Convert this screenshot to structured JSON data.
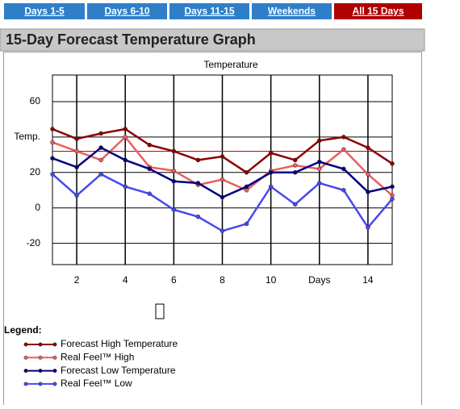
{
  "tabs": [
    {
      "label": "Days 1-5",
      "active": false
    },
    {
      "label": "Days 6-10",
      "active": false
    },
    {
      "label": "Days 11-15",
      "active": false
    },
    {
      "label": "Weekends",
      "active": false
    },
    {
      "label": "All 15 Days",
      "active": true
    }
  ],
  "header": {
    "title": "15-Day Forecast Temperature Graph"
  },
  "chart_data": {
    "type": "line",
    "title": "Temperature",
    "x": [
      1,
      2,
      3,
      4,
      5,
      6,
      7,
      8,
      9,
      10,
      11,
      12,
      13,
      14,
      15
    ],
    "xlim": [
      1,
      15
    ],
    "xticks": [
      2,
      4,
      6,
      8,
      10,
      {
        "value": 12,
        "label": "Days"
      },
      14
    ],
    "ylim": [
      -32,
      75
    ],
    "yticks": [
      60,
      {
        "value": 40,
        "label": "Temp."
      },
      20,
      0,
      -20
    ],
    "grid": true,
    "reference_line": {
      "value": 32,
      "color": "#cc0000"
    },
    "legend_title": "Legend:",
    "series": [
      {
        "name": "Forecast High Temperature",
        "color": "#8b0000",
        "values": [
          44.5,
          39,
          42,
          44.5,
          35.5,
          32,
          27,
          29,
          20,
          31,
          27,
          38,
          40,
          34,
          25
        ]
      },
      {
        "name": "Real Feel™ High",
        "color": "#e86060",
        "values": [
          37,
          32,
          27,
          40,
          23,
          21,
          13,
          16,
          10,
          21,
          24,
          22,
          33,
          19,
          7
        ]
      },
      {
        "name": "Forecast Low Temperature",
        "color": "#000080",
        "values": [
          28,
          23,
          34,
          27,
          22,
          15,
          14,
          6,
          12,
          20,
          20,
          26,
          22,
          9,
          12
        ]
      },
      {
        "name": "Real Feel™ Low",
        "color": "#4848f0",
        "values": [
          19,
          7,
          19,
          12,
          8,
          -1,
          -5,
          -13,
          -9,
          12,
          2,
          14,
          10,
          -11,
          5
        ]
      }
    ]
  }
}
